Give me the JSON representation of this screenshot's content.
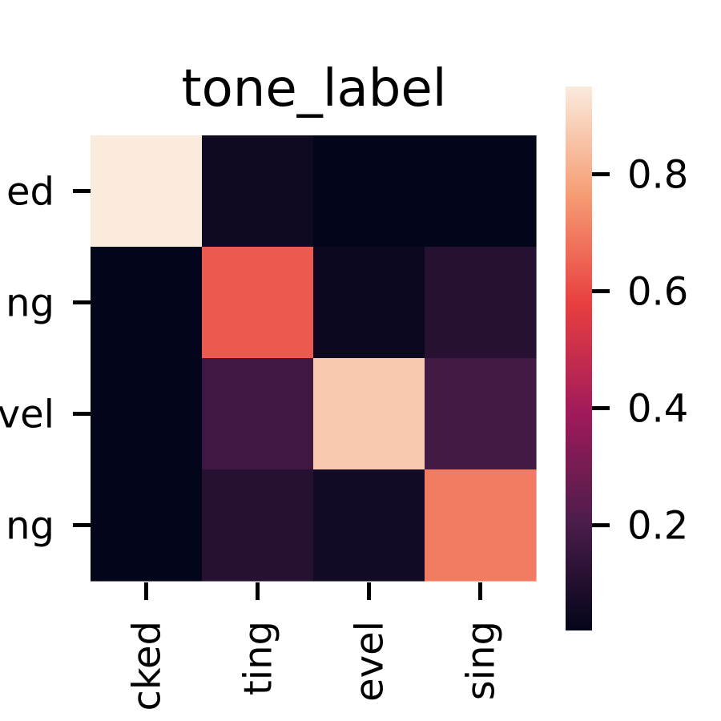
{
  "chart_data": {
    "type": "heatmap",
    "title": "tone_label",
    "rows": [
      "ed",
      "ng",
      "vel",
      "ng"
    ],
    "cols": [
      "cked",
      "ting",
      "evel",
      "sing"
    ],
    "values": [
      [
        0.95,
        0.05,
        0.02,
        0.02
      ],
      [
        0.02,
        0.63,
        0.04,
        0.11
      ],
      [
        0.02,
        0.17,
        0.87,
        0.18
      ],
      [
        0.02,
        0.11,
        0.06,
        0.7
      ]
    ],
    "colorbar": {
      "ticks": [
        0.2,
        0.4,
        0.6,
        0.8
      ],
      "tick_labels": [
        "0.2",
        "0.4",
        "0.6",
        "0.8"
      ],
      "vmin": 0.02,
      "vmax": 0.95
    },
    "colormap": "rocket",
    "colormap_stops": [
      "#03051a",
      "#4c1d4b",
      "#a11a5b",
      "#e83f3f",
      "#f69c73",
      "#faebdd"
    ]
  }
}
